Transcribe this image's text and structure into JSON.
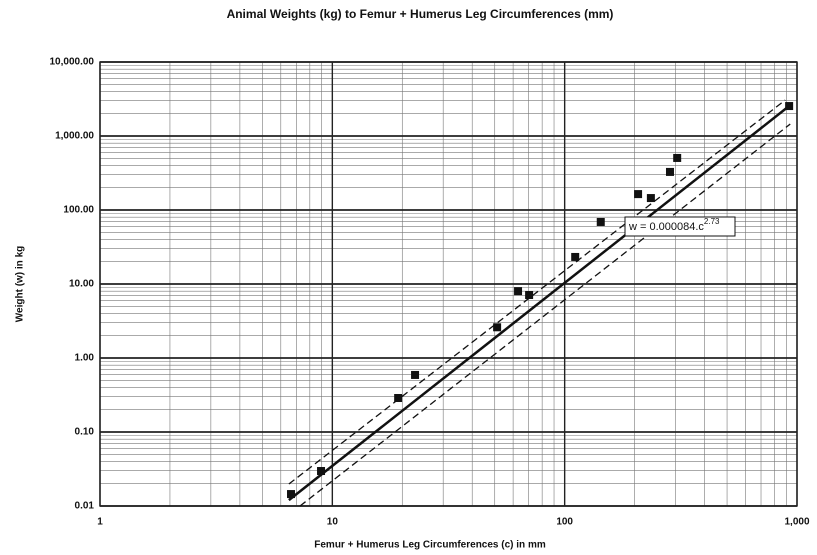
{
  "chart_data": {
    "type": "scatter",
    "title": "Animal Weights (kg) to Femur + Humerus Leg Circumferences (mm)",
    "x_label": "Femur + Humerus Leg Circumferences (c) in mm",
    "y_label": "Weight (w) in kg",
    "annotation": {
      "text": "w = 0.000084.c",
      "superscript": "2.73"
    },
    "x": [
      6.64,
      8.94,
      19.2,
      22.7,
      51.2,
      63,
      70.3,
      111,
      143,
      207,
      235,
      284,
      305,
      925
    ],
    "values": [
      0.0145,
      0.0297,
      0.288,
      0.59,
      2.6,
      8.0,
      7.1,
      23.2,
      68.9,
      164,
      145,
      327,
      505,
      2540
    ],
    "color": "#111111",
    "lines": [
      {
        "style": "solid",
        "x": [
          6.5,
          925
        ],
        "values": [
          0.012,
          2540
        ]
      },
      {
        "style": "dashed",
        "x": [
          6.5,
          890
        ],
        "values": [
          0.0198,
          3060
        ]
      },
      {
        "style": "dashed",
        "x": [
          7.26,
          935
        ],
        "values": [
          0.01,
          1450
        ]
      }
    ],
    "xscale": "log",
    "yscale": "log",
    "xlim": [
      1,
      1000
    ],
    "ylim": [
      0.01,
      10000
    ],
    "xticks": [
      1,
      10,
      100,
      {
        "value": 1000,
        "label": "1,000"
      }
    ],
    "yticks": [
      {
        "value": 0.01,
        "label": "0.01"
      },
      {
        "value": 0.1,
        "label": "0.10"
      },
      {
        "value": 1,
        "label": "1.00"
      },
      {
        "value": 10,
        "label": "10.00"
      },
      {
        "value": 100,
        "label": "100.00"
      },
      {
        "value": 1000,
        "label": "1,000.00"
      },
      {
        "value": 10000,
        "label": "10,000.00"
      }
    ],
    "grid": true,
    "minor_grid": true
  }
}
